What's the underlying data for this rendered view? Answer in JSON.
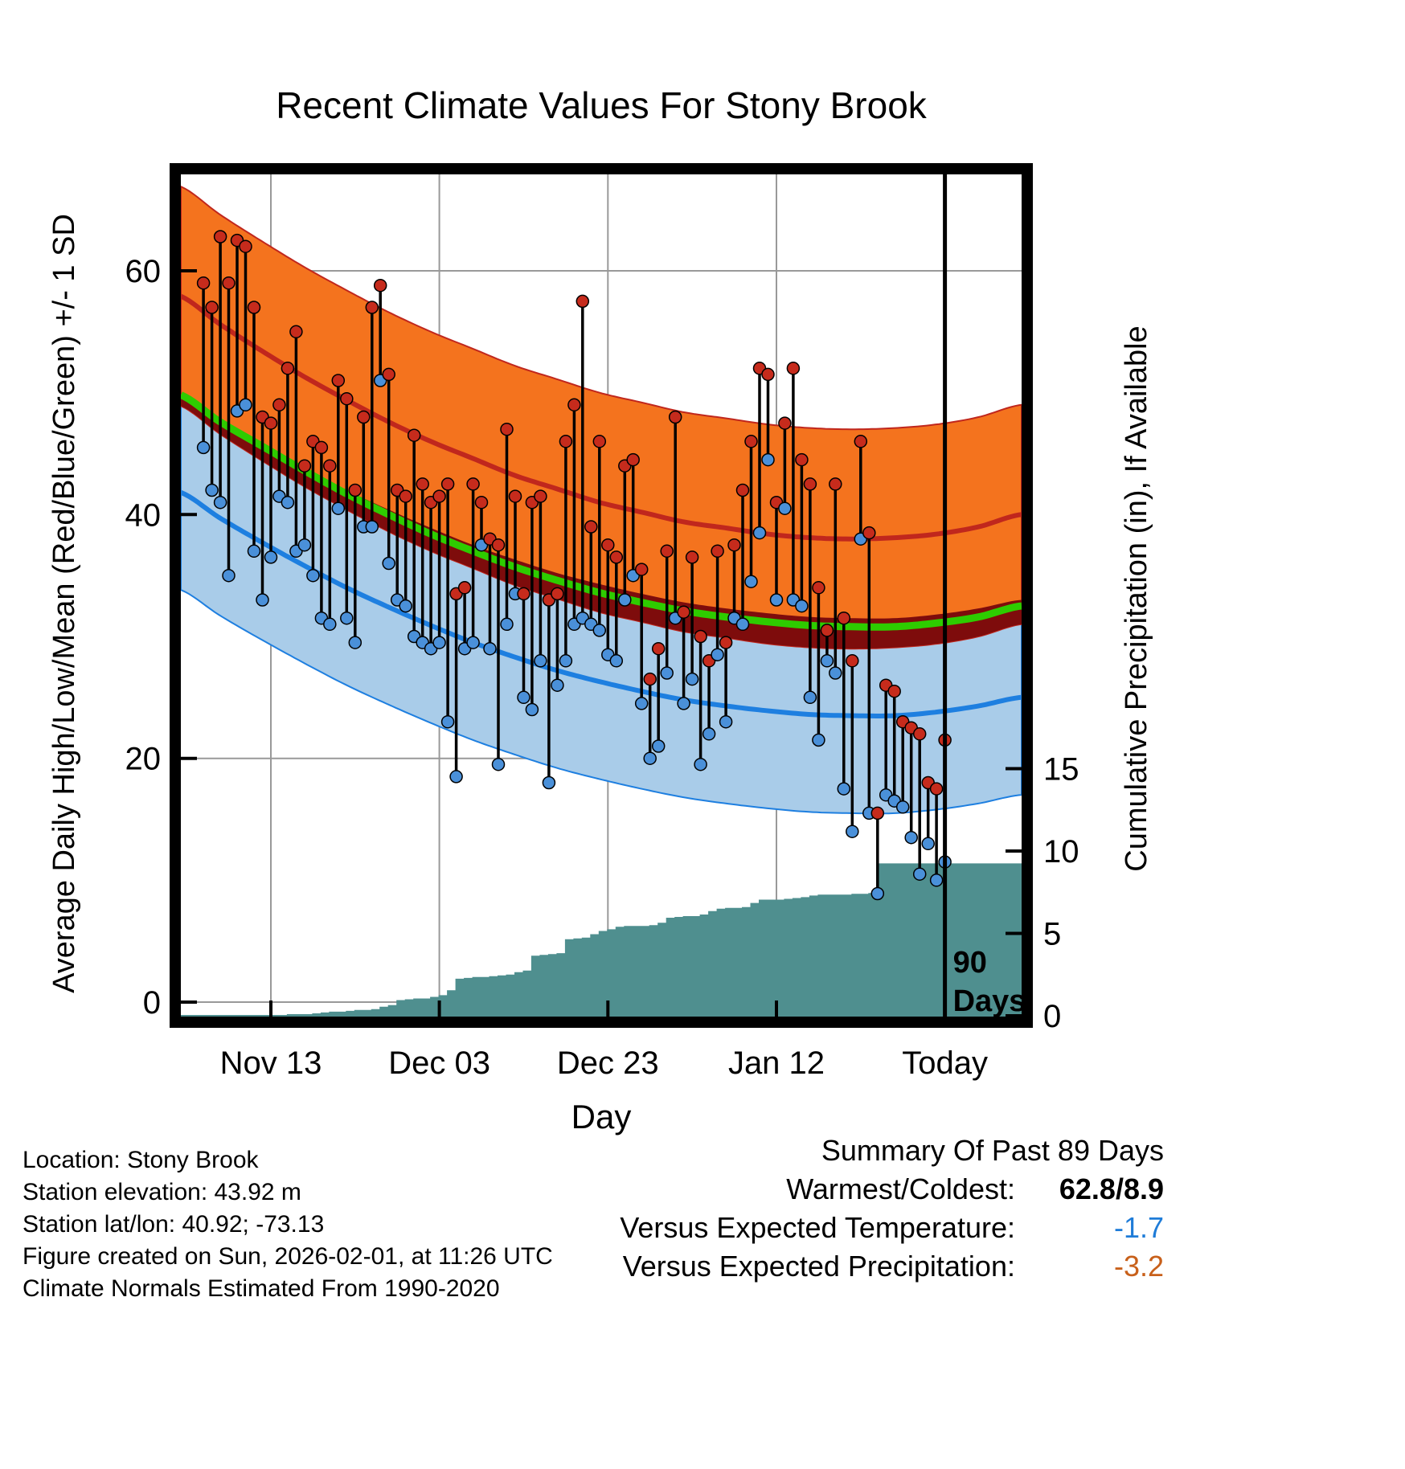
{
  "title": "Recent Climate Values For Stony Brook",
  "axes": {
    "left_label": "Average Daily High/Low/Mean (Red/Blue/Green) +/- 1 SD",
    "right_label": "Cumulative Precipitation (in), If Available",
    "x_label": "Day"
  },
  "chart_data": {
    "type": "line",
    "title": "Recent Climate Values For Stony Brook",
    "xlabel": "Day",
    "ylabel_left": "Average Daily High/Low/Mean (Red/Blue/Green) +/- 1 SD",
    "ylabel_right": "Cumulative Precipitation (in), If Available",
    "left_ticks": [
      0,
      20,
      40,
      60
    ],
    "right_ticks": [
      0,
      5,
      10,
      15
    ],
    "x_ticks": [
      {
        "label": "Nov 13",
        "day": 9
      },
      {
        "label": "Dec 03",
        "day": 29
      },
      {
        "label": "Dec 23",
        "day": 49
      },
      {
        "label": "Jan 12",
        "day": 69
      },
      {
        "label": "Today",
        "day": 89
      }
    ],
    "annotation": {
      "day": 89,
      "lines": [
        "90",
        "Days"
      ]
    },
    "series": {
      "high": [
        59,
        57,
        62.8,
        59,
        62.5,
        62,
        57,
        48,
        47.5,
        49,
        52,
        55,
        44,
        46,
        45.5,
        44,
        51,
        49.5,
        42,
        48,
        57,
        58.8,
        51.5,
        42,
        41.5,
        46.5,
        42.5,
        41,
        41.5,
        42.5,
        33.5,
        34,
        42.5,
        41,
        38,
        37.5,
        47,
        41.5,
        33.5,
        41,
        41.5,
        33,
        33.5,
        46,
        49,
        57.5,
        39,
        46,
        37.5,
        36.5,
        44,
        44.5,
        35.5,
        26.5,
        29,
        37,
        48,
        32,
        36.5,
        30,
        28,
        37,
        29.5,
        37.5,
        42,
        46,
        52,
        51.5,
        41,
        47.5,
        52,
        44.5,
        42.5,
        34,
        30.5,
        42.5,
        31.5,
        28,
        46,
        38.5,
        15.5,
        26,
        25.5,
        23,
        22.5,
        22,
        18,
        17.5,
        21.5
      ],
      "low": [
        45.5,
        42,
        41,
        35,
        48.5,
        49,
        37,
        33,
        36.5,
        41.5,
        41,
        37,
        37.5,
        35,
        31.5,
        31,
        40.5,
        31.5,
        29.5,
        39,
        39,
        51,
        36,
        33,
        32.5,
        30,
        29.5,
        29,
        29.5,
        23,
        18.5,
        29,
        29.5,
        37.5,
        29,
        19.5,
        31,
        33.5,
        25,
        24,
        28,
        18,
        26,
        28,
        31,
        31.5,
        31,
        30.5,
        28.5,
        28,
        33,
        35,
        24.5,
        20,
        21,
        27,
        31.5,
        24.5,
        26.5,
        19.5,
        22,
        28.5,
        23,
        31.5,
        31,
        34.5,
        38.5,
        44.5,
        33,
        40.5,
        33,
        32.5,
        25,
        21.5,
        28,
        27,
        17.5,
        14,
        38,
        15.5,
        8.9,
        17,
        16.5,
        16,
        13.5,
        10.5,
        13,
        10,
        11.5
      ],
      "precip_cumulative": [
        0,
        0,
        0,
        0,
        0,
        0,
        0,
        0,
        0,
        0,
        0.05,
        0.05,
        0.05,
        0.1,
        0.15,
        0.2,
        0.2,
        0.25,
        0.3,
        0.3,
        0.35,
        0.5,
        0.6,
        0.9,
        0.95,
        1.0,
        1.0,
        1.1,
        1.2,
        1.5,
        2.2,
        2.25,
        2.3,
        2.3,
        2.35,
        2.4,
        2.45,
        2.6,
        2.7,
        3.6,
        3.65,
        3.7,
        3.75,
        4.6,
        4.65,
        4.7,
        4.9,
        5.1,
        5.2,
        5.35,
        5.4,
        5.4,
        5.4,
        5.45,
        5.6,
        5.9,
        5.95,
        6.0,
        6.0,
        6.1,
        6.3,
        6.45,
        6.5,
        6.5,
        6.55,
        6.8,
        7.0,
        7.0,
        7.0,
        7.05,
        7.1,
        7.15,
        7.25,
        7.3,
        7.3,
        7.3,
        7.3,
        7.35,
        7.35,
        7.4,
        9.2,
        9.2,
        9.2,
        9.2,
        9.2,
        9.2,
        9.2,
        9.2,
        9.2
      ]
    },
    "normals": {
      "days": [
        -2,
        3,
        8,
        13,
        18,
        23,
        28,
        33,
        38,
        43,
        48,
        53,
        58,
        63,
        68,
        73,
        78,
        83,
        88,
        93,
        98
      ],
      "mean_high": [
        58,
        55.6,
        53.4,
        51.3,
        49.4,
        47.6,
        46,
        44.6,
        43.2,
        42.1,
        41,
        40.2,
        39.4,
        38.9,
        38.4,
        38.1,
        38,
        38.1,
        38.4,
        39,
        40
      ],
      "mean_low": [
        41.9,
        39.7,
        37.7,
        35.8,
        34,
        32.4,
        30.9,
        29.5,
        28.3,
        27.2,
        26.3,
        25.5,
        24.8,
        24.3,
        23.9,
        23.6,
        23.5,
        23.5,
        23.8,
        24.3,
        25
      ],
      "mean": [
        49.9,
        47.6,
        45.6,
        43.6,
        41.7,
        40,
        38.4,
        37,
        35.7,
        34.6,
        33.6,
        32.8,
        32.1,
        31.6,
        31.2,
        30.9,
        30.8,
        30.8,
        31.1,
        31.6,
        32.5
      ],
      "high_sd": 9,
      "low_sd": 8
    },
    "colors": {
      "high_band": "#F4731E",
      "high_line": "#C0271D",
      "overlap_band": "#7E0C0C",
      "mean_line": "#2ECC00",
      "low_band": "#A9CCE9",
      "low_line": "#1E7FE0",
      "high_dot": "#C62B1C",
      "low_dot": "#4A90D9",
      "precip_fill": "#4F8F8F",
      "grid": "#999999"
    }
  },
  "footer": {
    "location": "Location: Stony Brook",
    "elevation": "Station elevation: 43.92 m",
    "latlon": "Station lat/lon: 40.92; -73.13",
    "created": "Figure created on Sun, 2026-02-01, at 11:26 UTC",
    "normals_note": "Climate Normals Estimated From 1990-2020"
  },
  "summary": {
    "title": "Summary Of Past 89 Days",
    "rows": [
      {
        "label": "Warmest/Coldest:",
        "value": "62.8/8.9",
        "color": "#000000"
      },
      {
        "label": "Versus Expected Temperature:",
        "value": "-1.7",
        "color": "#1F7CD8"
      },
      {
        "label": "Versus Expected Precipitation:",
        "value": "-3.2",
        "color": "#C8601A"
      }
    ]
  }
}
